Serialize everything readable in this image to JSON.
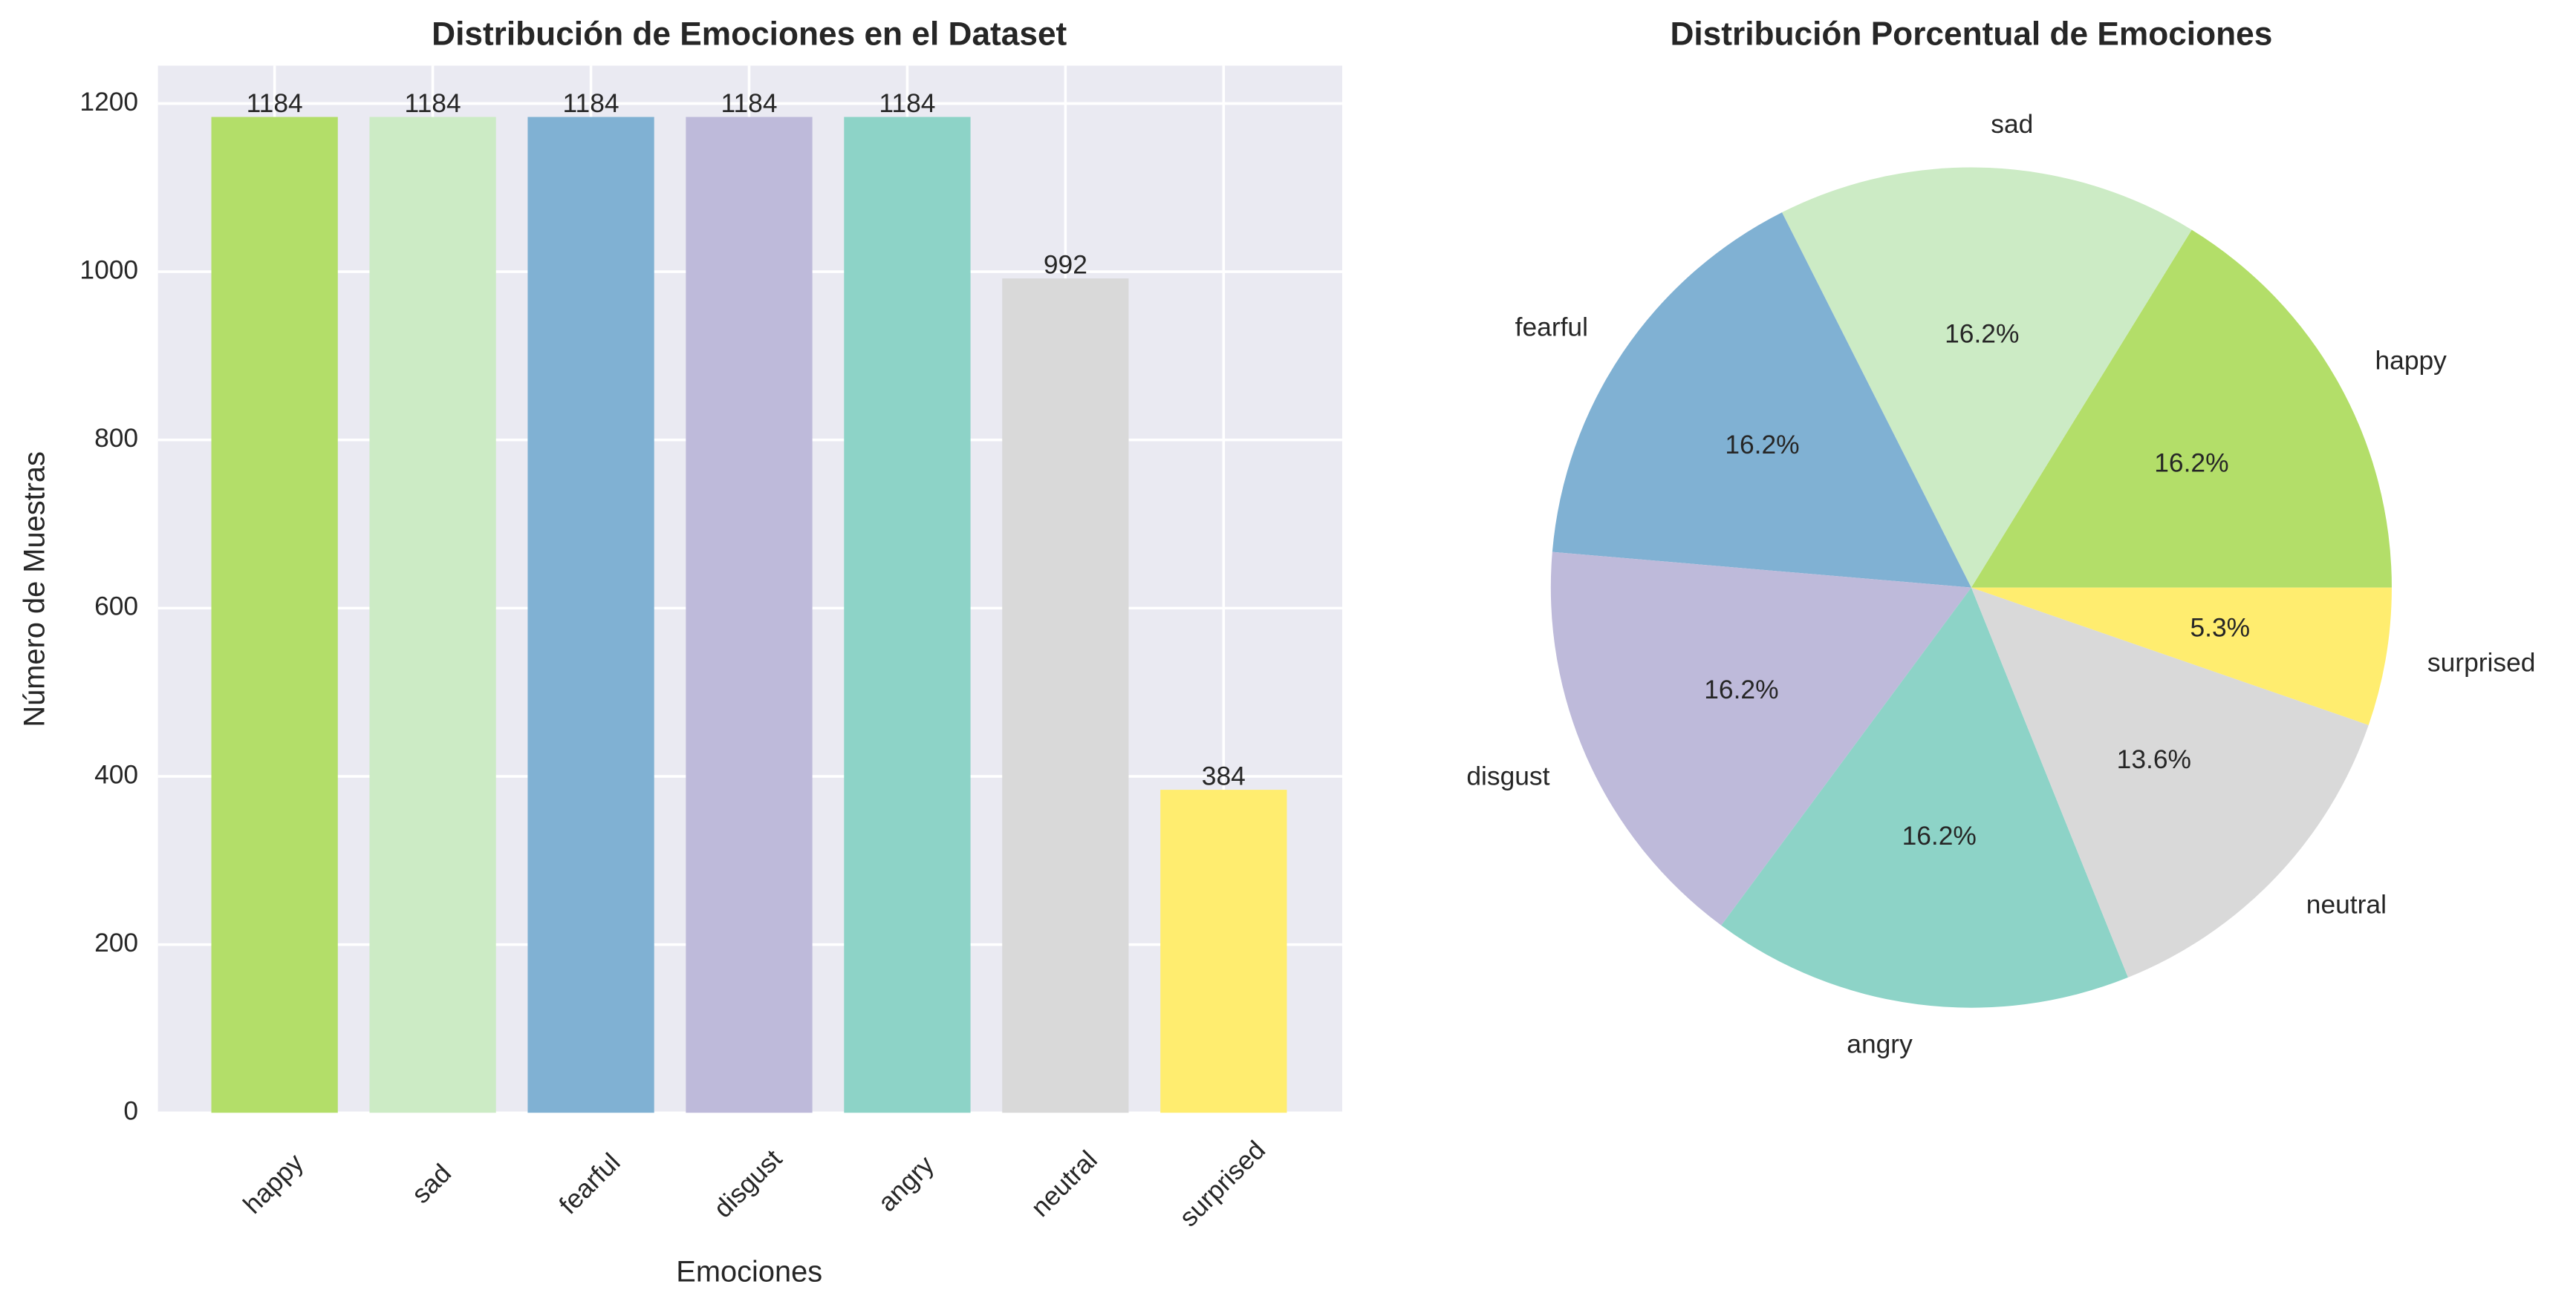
{
  "chart_data": [
    {
      "type": "bar",
      "title": "Distribución de Emociones en el Dataset",
      "xlabel": "Emociones",
      "ylabel": "Número de Muestras",
      "categories": [
        "happy",
        "sad",
        "fearful",
        "disgust",
        "angry",
        "neutral",
        "surprised"
      ],
      "values": [
        1184,
        1184,
        1184,
        1184,
        1184,
        992,
        384
      ],
      "colors": [
        "#b3de69",
        "#ccebc5",
        "#80b1d3",
        "#bebada",
        "#8dd3c7",
        "#d9d9d9",
        "#ffed6f"
      ],
      "ylim": [
        0,
        1245
      ],
      "yticks": [
        0,
        200,
        400,
        600,
        800,
        1000,
        1200
      ],
      "grid": true
    },
    {
      "type": "pie",
      "title": "Distribución Porcentual de Emociones",
      "categories": [
        "happy",
        "sad",
        "fearful",
        "disgust",
        "angry",
        "neutral",
        "surprised"
      ],
      "values": [
        16.2,
        16.2,
        16.2,
        16.2,
        16.2,
        13.6,
        5.3
      ],
      "value_labels": [
        "16.2%",
        "16.2%",
        "16.2%",
        "16.2%",
        "16.2%",
        "13.6%",
        "5.3%"
      ],
      "colors": [
        "#b3de69",
        "#ccebc5",
        "#80b1d3",
        "#bebada",
        "#8dd3c7",
        "#d9d9d9",
        "#ffed6f"
      ]
    }
  ]
}
